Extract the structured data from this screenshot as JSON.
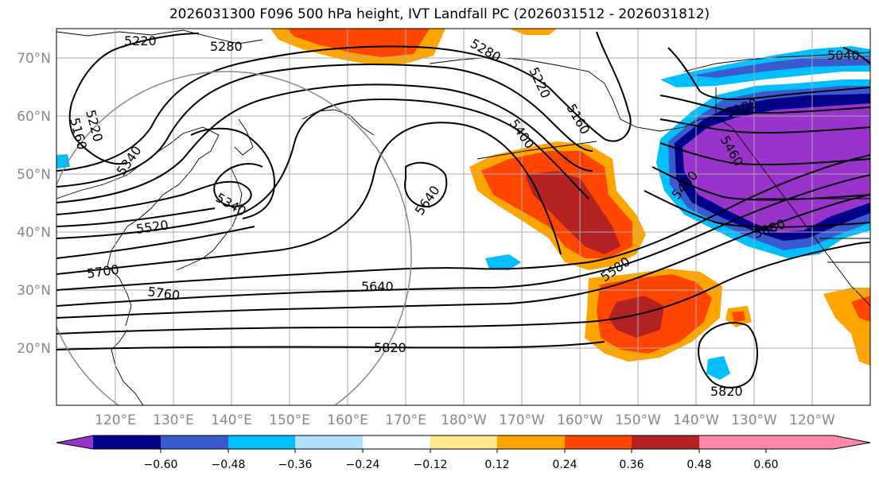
{
  "title": "2026031300 F096 500 hPa height, IVT Landfall PC (2026031512 - 2026031812)",
  "lat_labels": [
    "70°N",
    "60°N",
    "50°N",
    "40°N",
    "30°N",
    "20°N"
  ],
  "lon_labels": [
    "120°E",
    "130°E",
    "140°E",
    "150°E",
    "160°E",
    "170°E",
    "180°W",
    "170°W",
    "160°W",
    "150°W",
    "140°W",
    "130°W",
    "120°W"
  ],
  "contour_labels": [
    "5220",
    "5280",
    "5280",
    "5220",
    "5160",
    "5160",
    "5220",
    "5340",
    "5340",
    "5400",
    "5400",
    "5520",
    "5640",
    "5700",
    "5760",
    "5640",
    "5580",
    "5820",
    "5820",
    "5880",
    "5100",
    "5040",
    "5460"
  ],
  "colorbar": {
    "ticks": [
      "−0.60",
      "−0.48",
      "−0.36",
      "−0.24",
      "−0.12",
      "0.12",
      "0.24",
      "0.36",
      "0.48",
      "0.60"
    ],
    "colors": [
      "#9933cc",
      "#000088",
      "#3a5bd0",
      "#00bfff",
      "#b0e0ff",
      "#ffffff",
      "#ffe88a",
      "#ffa500",
      "#ff4500",
      "#b22222",
      "#ff88aa"
    ]
  },
  "palette": {
    "purple": "#9933cc",
    "navy": "#000088",
    "royal": "#3a5bd0",
    "sky": "#00bfff",
    "pale": "#b0e0ff",
    "yellow": "#ffe88a",
    "orange": "#ffa500",
    "redorange": "#ff4500",
    "brick": "#b22222",
    "pink": "#ff88aa"
  }
}
